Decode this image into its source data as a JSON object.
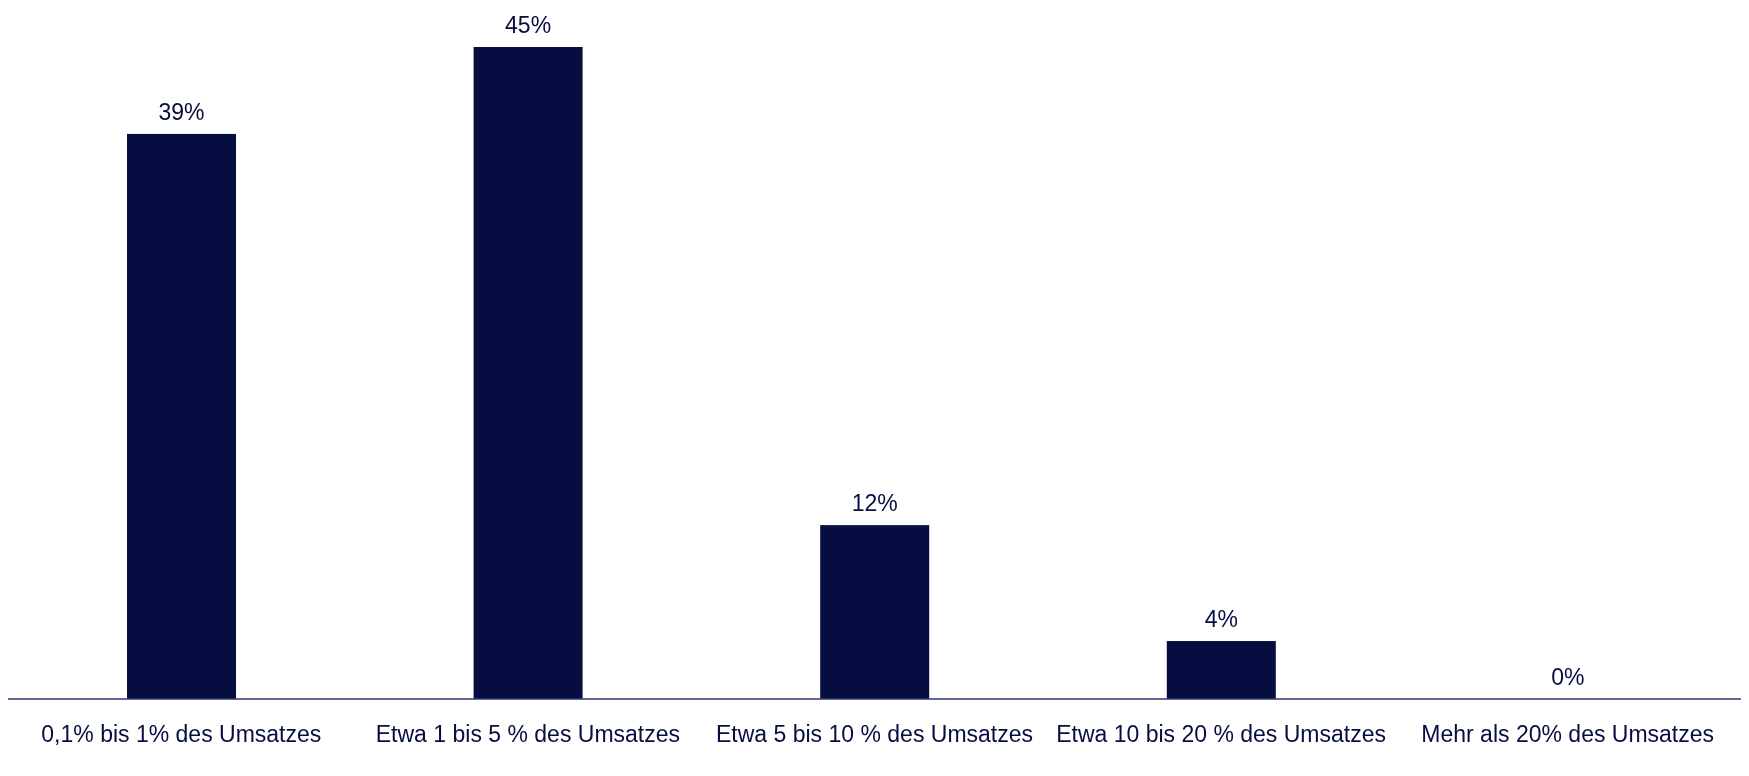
{
  "chart_data": {
    "type": "bar",
    "categories": [
      "0,1% bis 1% des Umsatzes",
      "Etwa 1 bis 5 % des Umsatzes",
      "Etwa 5 bis 10 % des Umsatzes",
      "Etwa 10 bis 20 % des Umsatzes",
      "Mehr als 20% des Umsatzes"
    ],
    "values": [
      39,
      45,
      12,
      4,
      0
    ],
    "value_labels": [
      "39%",
      "45%",
      "12%",
      "4%",
      "0%"
    ],
    "color": "#060d40",
    "grid": false
  }
}
